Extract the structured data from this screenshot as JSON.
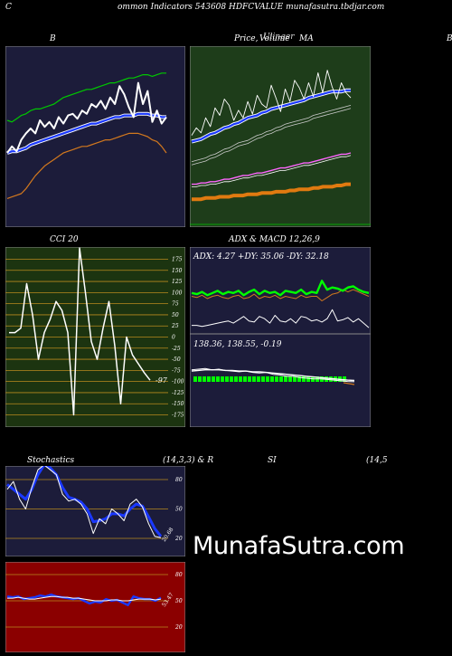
{
  "header": {
    "left_letter": "C",
    "title": "ommon  Indicators 543608  HDFCVALUE munafasutra.tbdjar.com"
  },
  "panels": {
    "bollinger": {
      "title": "B"
    },
    "price": {
      "title_a": "Price,",
      "title_b": "Volume",
      "title_c": "MA",
      "overlap": "Ulinger"
    },
    "right_cut": {
      "title": "B"
    },
    "cci": {
      "title": "CCI 20",
      "value_label": "-97",
      "yticks": [
        "175",
        "150",
        "125",
        "100",
        "75",
        "50",
        "25",
        "0",
        "-25",
        "-50",
        "-75",
        "-100",
        "-125",
        "-150",
        "-175"
      ]
    },
    "adx_macd": {
      "title": "ADX  & MACD 12,26,9",
      "adx_readout": "ADX: 4.27 +DY: 35.06  -DY: 32.18",
      "macd_readout": "138.36,  138.55,  -0.19"
    },
    "stochastics": {
      "title": "Stochastics",
      "params": "(14,3,3) & R",
      "yticks": [
        "80",
        "50",
        "20"
      ],
      "value_label": "20.68"
    },
    "rsi": {
      "title": "SI",
      "params": "(14,5",
      "yticks": [
        "80",
        "50",
        "20"
      ],
      "value_label": "53.47"
    }
  },
  "brand": "MunafaSutra.com",
  "colors": {
    "navy": "#1c1c3a",
    "green_bg": "#1e3d1a",
    "cci_bg": "#1c3410",
    "red_bg": "#8b0000",
    "orange": "#d2781e",
    "blue": "#1a38ff",
    "lime": "#00c800"
  },
  "chart_data": [
    {
      "type": "line",
      "title": "B",
      "series": [
        {
          "values": [
            40,
            44,
            41,
            48,
            52,
            55,
            52,
            60,
            56,
            59,
            55,
            62,
            58,
            63,
            64,
            61,
            66,
            64,
            70,
            68,
            72,
            67,
            74,
            70,
            81,
            76,
            68,
            62,
            83,
            70,
            78,
            59,
            66,
            58,
            62
          ]
        },
        {
          "values": [
            60,
            59,
            61,
            63,
            64,
            66,
            67,
            67,
            68,
            69,
            70,
            72,
            74,
            75,
            76,
            77,
            78,
            79,
            79,
            80,
            81,
            82,
            83,
            83,
            84,
            85,
            86,
            86,
            87,
            88,
            88,
            87,
            88,
            89,
            89
          ]
        },
        {
          "values": [
            40,
            41,
            41,
            42,
            43,
            45,
            46,
            47,
            48,
            49,
            50,
            51,
            52,
            53,
            54,
            55,
            56,
            57,
            58,
            58,
            59,
            60,
            61,
            62,
            62,
            63,
            63,
            63,
            64,
            64,
            64,
            63,
            63,
            62,
            62
          ]
        },
        {
          "values": [
            12,
            13,
            14,
            15,
            18,
            22,
            26,
            29,
            32,
            34,
            36,
            38,
            40,
            41,
            42,
            43,
            44,
            44,
            45,
            46,
            47,
            48,
            48,
            49,
            50,
            51,
            52,
            52,
            52,
            51,
            50,
            48,
            47,
            44,
            40
          ]
        }
      ]
    },
    {
      "type": "line",
      "title": "Price, Volume, MA",
      "series": [
        {
          "values": [
            66,
            72,
            68,
            80,
            73,
            88,
            82,
            95,
            90,
            78,
            86,
            80,
            93,
            83,
            98,
            91,
            88,
            106,
            96,
            85,
            103,
            93,
            110,
            104,
            95,
            108,
            97,
            116,
            100,
            118,
            105,
            95,
            108,
            100,
            96
          ]
        },
        {
          "values": [
            61,
            62,
            63,
            65,
            67,
            68,
            70,
            72,
            73,
            75,
            76,
            78,
            80,
            81,
            82,
            84,
            85,
            87,
            88,
            89,
            90,
            91,
            92,
            93,
            94,
            96,
            97,
            98,
            99,
            100,
            101,
            101,
            101,
            102,
            102
          ]
        },
        {
          "values": [
            45,
            46,
            47,
            48,
            50,
            51,
            53,
            55,
            56,
            58,
            60,
            61,
            62,
            64,
            66,
            67,
            69,
            70,
            72,
            73,
            75,
            76,
            77,
            78,
            79,
            80,
            82,
            83,
            84,
            85,
            86,
            87,
            88,
            89,
            90
          ]
        },
        {
          "values": [
            27,
            27,
            28,
            28,
            29,
            29,
            30,
            31,
            31,
            32,
            33,
            34,
            34,
            35,
            36,
            36,
            37,
            38,
            39,
            40,
            40,
            41,
            42,
            43,
            44,
            44,
            45,
            46,
            47,
            48,
            49,
            50,
            51,
            51,
            52
          ]
        },
        {
          "values": [
            15,
            15,
            15,
            16,
            16,
            16,
            17,
            17,
            17,
            18,
            18,
            18,
            19,
            19,
            19,
            20,
            20,
            20,
            21,
            21,
            21,
            22,
            22,
            23,
            23,
            23,
            24,
            24,
            25,
            25,
            25,
            26,
            26,
            27,
            27
          ]
        }
      ]
    },
    {
      "type": "line",
      "title": "CCI 20",
      "ylim": [
        -175,
        175
      ],
      "series": [
        {
          "values": [
            10,
            10,
            20,
            120,
            50,
            -50,
            10,
            40,
            80,
            60,
            10,
            -175,
            200,
            100,
            -10,
            -50,
            20,
            80,
            -20,
            -150,
            0,
            -40,
            -60,
            -80,
            -97
          ]
        }
      ]
    },
    {
      "type": "line",
      "title": "ADX & MACD 12,26,9",
      "series": [
        {
          "name": "+DY",
          "values": [
            35,
            34,
            36,
            33,
            35,
            37,
            34,
            36,
            35,
            37,
            33,
            36,
            38,
            34,
            37,
            35,
            36,
            33,
            37,
            36,
            35,
            38,
            34,
            36,
            35,
            46,
            38,
            40,
            39,
            37,
            40,
            41,
            38,
            36,
            35
          ]
        },
        {
          "name": "-DY",
          "values": [
            32,
            31,
            33,
            30,
            32,
            33,
            31,
            30,
            32,
            33,
            30,
            31,
            34,
            30,
            32,
            31,
            33,
            30,
            32,
            31,
            30,
            33,
            31,
            32,
            32,
            28,
            31,
            34,
            35,
            38,
            36,
            38,
            36,
            34,
            32
          ]
        },
        {
          "name": "ADX",
          "values": [
            6,
            6,
            5,
            6,
            7,
            8,
            9,
            10,
            8,
            11,
            14,
            10,
            9,
            14,
            12,
            8,
            15,
            10,
            9,
            12,
            8,
            14,
            13,
            10,
            11,
            9,
            12,
            20,
            10,
            11,
            13,
            9,
            12,
            8,
            4
          ]
        },
        {
          "name": "MACD",
          "values": [
            140.2,
            140.3,
            140.4,
            140.2,
            140.3,
            140.1,
            140.0,
            139.9,
            140.0,
            139.8,
            139.7,
            139.8,
            139.5,
            139.4,
            139.2,
            139.2,
            139.0,
            138.9,
            138.8,
            138.8,
            138.7,
            138.6,
            138.5,
            138.4,
            138.36
          ]
        },
        {
          "name": "Signal",
          "values": [
            140.0,
            140.1,
            140.2,
            140.2,
            140.2,
            140.1,
            140.1,
            140.0,
            140.0,
            139.9,
            139.9,
            139.8,
            139.7,
            139.6,
            139.5,
            139.4,
            139.3,
            139.2,
            139.1,
            139.0,
            138.9,
            138.8,
            138.7,
            138.6,
            138.55
          ]
        }
      ]
    },
    {
      "type": "line",
      "title": "Stochastics (14,3,3)",
      "ylim": [
        0,
        100
      ],
      "series": [
        {
          "values": [
            70,
            78,
            60,
            50,
            72,
            90,
            95,
            90,
            85,
            65,
            58,
            60,
            55,
            45,
            25,
            40,
            35,
            50,
            45,
            38,
            55,
            60,
            52,
            35,
            22,
            20.68
          ]
        },
        {
          "values": [
            75,
            70,
            65,
            60,
            70,
            85,
            95,
            92,
            85,
            72,
            62,
            60,
            57,
            50,
            37,
            38,
            40,
            45,
            45,
            43,
            50,
            55,
            53,
            42,
            30,
            22
          ]
        }
      ]
    },
    {
      "type": "line",
      "title": "RSI (14",
      "ylim": [
        0,
        100
      ],
      "series": [
        {
          "values": [
            55,
            54,
            55,
            52,
            53,
            54,
            56,
            55,
            57,
            55,
            54,
            53,
            52,
            53,
            50,
            47,
            49,
            48,
            52,
            50,
            51,
            48,
            45,
            55,
            53,
            52,
            52,
            50,
            53.47
          ]
        },
        {
          "values": [
            53,
            53,
            54,
            53,
            52,
            52,
            53,
            54,
            55,
            55,
            54,
            54,
            53,
            53,
            52,
            51,
            50,
            50,
            50,
            51,
            51,
            50,
            50,
            51,
            52,
            52,
            52,
            51,
            52
          ]
        }
      ]
    }
  ]
}
